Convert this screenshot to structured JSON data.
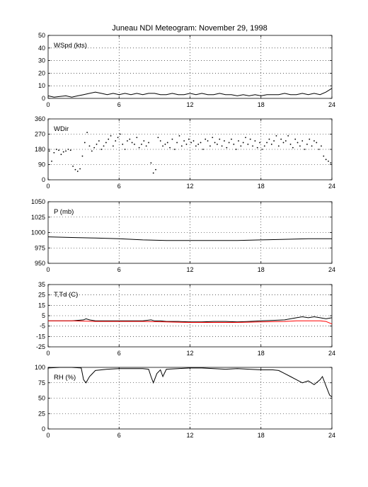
{
  "title": "Juneau NDI Meteogram:  November 29, 1998",
  "chart_data": [
    {
      "type": "line",
      "panel_label": "WSpd (kts)",
      "xlim": [
        0,
        24
      ],
      "ylim": [
        0,
        50
      ],
      "x_ticks": [
        "0",
        "6",
        "12",
        "18",
        "24"
      ],
      "y_ticks": [
        "0",
        "10",
        "20",
        "30",
        "40",
        "50"
      ],
      "grid": true,
      "series": [
        {
          "color": "#000000",
          "style": "line",
          "x": [
            0,
            0.5,
            1,
            1.5,
            2,
            2.5,
            3,
            3.5,
            4,
            4.5,
            5,
            5.5,
            6,
            6.5,
            7,
            7.5,
            8,
            8.5,
            9,
            9.5,
            10,
            10.5,
            11,
            11.5,
            12,
            12.5,
            13,
            13.5,
            14,
            14.5,
            15,
            15.5,
            16,
            16.5,
            17,
            17.5,
            18,
            18.5,
            19,
            19.5,
            20,
            20.5,
            21,
            21.5,
            22,
            22.5,
            23,
            23.5,
            24
          ],
          "y": [
            2,
            1,
            1.5,
            2,
            1,
            2,
            3,
            4,
            5,
            4,
            3,
            4,
            3,
            4,
            3,
            4,
            3,
            4,
            4,
            3,
            3,
            4,
            3,
            3,
            4,
            3,
            4,
            3,
            3,
            4,
            3,
            3,
            2,
            3,
            2,
            3,
            2,
            3,
            3,
            3,
            4,
            3,
            3,
            4,
            3,
            4,
            3,
            5,
            8
          ]
        }
      ]
    },
    {
      "type": "scatter",
      "panel_label": "WDir",
      "xlim": [
        0,
        24
      ],
      "ylim": [
        0,
        360
      ],
      "x_ticks": [
        "0",
        "6",
        "12",
        "18",
        "24"
      ],
      "y_ticks": [
        "0",
        "90",
        "180",
        "270",
        "360"
      ],
      "grid": true,
      "series": [
        {
          "color": "#000000",
          "style": "dots",
          "x": [
            0.1,
            0.3,
            0.5,
            0.7,
            0.9,
            1.1,
            1.3,
            1.5,
            1.7,
            1.9,
            2.1,
            2.3,
            2.5,
            2.7,
            2.9,
            3.1,
            3.3,
            3.5,
            3.7,
            3.9,
            4.1,
            4.3,
            4.5,
            4.7,
            4.9,
            5.1,
            5.3,
            5.5,
            5.7,
            5.9,
            6.1,
            6.3,
            6.5,
            6.7,
            6.9,
            7.1,
            7.3,
            7.5,
            7.7,
            7.9,
            8.1,
            8.3,
            8.5,
            8.7,
            8.9,
            9.1,
            9.3,
            9.5,
            9.7,
            9.9,
            10.1,
            10.3,
            10.5,
            10.7,
            10.9,
            11.1,
            11.3,
            11.5,
            11.7,
            11.9,
            12.1,
            12.3,
            12.5,
            12.7,
            12.9,
            13.1,
            13.3,
            13.5,
            13.7,
            13.9,
            14.1,
            14.3,
            14.5,
            14.7,
            14.9,
            15.1,
            15.3,
            15.5,
            15.7,
            15.9,
            16.1,
            16.3,
            16.5,
            16.7,
            16.9,
            17.1,
            17.3,
            17.5,
            17.7,
            17.9,
            18.1,
            18.3,
            18.5,
            18.7,
            18.9,
            19.1,
            19.3,
            19.5,
            19.7,
            19.9,
            20.1,
            20.3,
            20.5,
            20.7,
            20.9,
            21.1,
            21.3,
            21.5,
            21.7,
            21.9,
            22.1,
            22.3,
            22.5,
            22.7,
            22.9,
            23.1,
            23.3,
            23.5,
            23.7,
            23.9
          ],
          "y": [
            170,
            110,
            160,
            180,
            175,
            150,
            165,
            170,
            180,
            175,
            80,
            60,
            50,
            65,
            140,
            220,
            280,
            200,
            170,
            190,
            210,
            230,
            180,
            200,
            220,
            240,
            260,
            200,
            230,
            250,
            270,
            210,
            180,
            230,
            240,
            220,
            210,
            250,
            190,
            210,
            230,
            200,
            220,
            100,
            40,
            60,
            250,
            230,
            200,
            210,
            220,
            190,
            240,
            180,
            220,
            260,
            200,
            230,
            210,
            240,
            220,
            230,
            200,
            210,
            220,
            180,
            240,
            230,
            200,
            250,
            220,
            210,
            240,
            200,
            230,
            190,
            220,
            240,
            210,
            180,
            230,
            200,
            220,
            250,
            210,
            240,
            200,
            230,
            190,
            220,
            180,
            200,
            220,
            240,
            210,
            230,
            260,
            200,
            240,
            220,
            230,
            260,
            210,
            190,
            240,
            220,
            200,
            230,
            180,
            210,
            240,
            200,
            230,
            220,
            180,
            200,
            140,
            120,
            110,
            100
          ]
        }
      ]
    },
    {
      "type": "line",
      "panel_label": "P (mb)",
      "xlim": [
        0,
        24
      ],
      "ylim": [
        950,
        1050
      ],
      "x_ticks": [
        "0",
        "6",
        "12",
        "18",
        "24"
      ],
      "y_ticks": [
        "950",
        "975",
        "1000",
        "1025",
        "1050"
      ],
      "grid": true,
      "series": [
        {
          "color": "#000000",
          "style": "line",
          "x": [
            0,
            2,
            4,
            6,
            8,
            10,
            12,
            14,
            16,
            18,
            20,
            22,
            24
          ],
          "y": [
            993,
            992,
            991,
            990,
            988,
            987,
            987,
            987,
            987,
            988,
            989,
            990,
            990
          ]
        }
      ]
    },
    {
      "type": "line",
      "panel_label": "T,Td (C)",
      "xlim": [
        0,
        24
      ],
      "ylim": [
        -25,
        35
      ],
      "x_ticks": [
        "0",
        "6",
        "12",
        "18",
        "24"
      ],
      "y_ticks": [
        "-25",
        "-15",
        "-5",
        "5",
        "15",
        "25",
        "35"
      ],
      "grid": true,
      "series": [
        {
          "color": "#000000",
          "style": "line",
          "x": [
            0,
            1,
            2,
            3,
            3.2,
            3.5,
            4,
            5,
            6,
            7,
            8,
            8.7,
            9,
            9.5,
            10,
            11,
            12,
            13,
            14,
            15,
            16,
            17,
            18,
            19,
            20,
            20.5,
            21,
            21.5,
            22,
            22.5,
            23,
            23.5,
            24
          ],
          "y": [
            0,
            0,
            0,
            1,
            2,
            1,
            0,
            0,
            0,
            0,
            0,
            1,
            0,
            0,
            -0.5,
            -0.5,
            -1,
            -1,
            -0.5,
            -0.5,
            -1,
            -0.5,
            0,
            0.5,
            1,
            2,
            3,
            4,
            3,
            4,
            3,
            2,
            3
          ]
        },
        {
          "color": "#ff0000",
          "style": "line",
          "x": [
            0,
            2,
            4,
            6,
            8,
            10,
            12,
            14,
            16,
            18,
            20,
            21,
            22,
            23,
            23.5,
            24
          ],
          "y": [
            0,
            0,
            -0.5,
            -0.5,
            -0.5,
            -1,
            -1.5,
            -1.5,
            -1.5,
            -1,
            -0.5,
            0,
            0,
            0,
            -0.5,
            -3
          ]
        }
      ]
    },
    {
      "type": "line",
      "panel_label": "RH (%)",
      "xlim": [
        0,
        24
      ],
      "ylim": [
        0,
        100
      ],
      "x_ticks": [
        "0",
        "6",
        "12",
        "18",
        "24"
      ],
      "y_ticks": [
        "0",
        "25",
        "50",
        "75",
        "100"
      ],
      "grid": true,
      "series": [
        {
          "color": "#000000",
          "style": "line",
          "x": [
            0,
            1,
            2,
            2.8,
            3,
            3.2,
            3.5,
            4,
            5,
            6,
            7,
            8,
            8.5,
            8.7,
            8.9,
            9.2,
            9.5,
            9.7,
            10,
            11,
            12,
            13,
            14,
            15,
            16,
            17,
            18,
            19,
            19.5,
            20,
            20.5,
            21,
            21.5,
            22,
            22.5,
            23,
            23.2,
            23.5,
            23.8,
            24
          ],
          "y": [
            99,
            100,
            100,
            99,
            80,
            75,
            85,
            95,
            97,
            98,
            98,
            98,
            97,
            85,
            75,
            90,
            96,
            85,
            97,
            98,
            99,
            99,
            98,
            97,
            98,
            97,
            96,
            96,
            95,
            90,
            85,
            80,
            75,
            78,
            72,
            80,
            85,
            70,
            55,
            52
          ]
        }
      ]
    }
  ]
}
